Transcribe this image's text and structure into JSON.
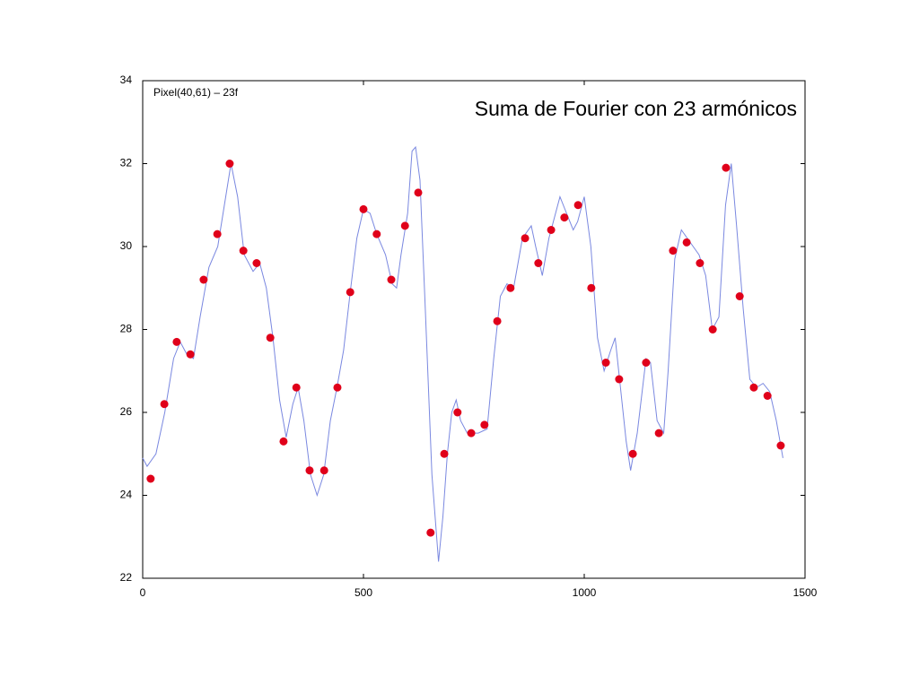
{
  "chart_data": {
    "type": "line",
    "title": "Suma de Fourier con 23 armónicos",
    "annotation": "Pixel(40,61) – 23f",
    "xlim": [
      0,
      1500
    ],
    "xticks": [
      0,
      500,
      1000,
      1500
    ],
    "ylim": [
      22,
      34
    ],
    "yticks": [
      22,
      24,
      26,
      28,
      30,
      32,
      34
    ],
    "series": [
      {
        "type": "line",
        "color": "#7a88e0",
        "x": [
          0,
          10,
          30,
          50,
          70,
          85,
          100,
          115,
          130,
          150,
          170,
          185,
          200,
          215,
          230,
          250,
          265,
          280,
          295,
          310,
          325,
          340,
          352,
          365,
          380,
          395,
          410,
          425,
          440,
          455,
          470,
          485,
          500,
          515,
          530,
          550,
          565,
          575,
          585,
          600,
          610,
          618,
          628,
          640,
          655,
          670,
          680,
          690,
          700,
          710,
          720,
          735,
          760,
          780,
          795,
          810,
          825,
          840,
          860,
          880,
          890,
          905,
          920,
          945,
          960,
          975,
          985,
          1000,
          1015,
          1030,
          1045,
          1060,
          1070,
          1080,
          1095,
          1105,
          1120,
          1140,
          1150,
          1165,
          1180,
          1190,
          1205,
          1220,
          1240,
          1260,
          1275,
          1290,
          1305,
          1320,
          1333,
          1345,
          1360,
          1375,
          1390,
          1405,
          1420,
          1435,
          1450
        ],
        "values": [
          24.9,
          24.7,
          25.0,
          26.0,
          27.3,
          27.7,
          27.4,
          27.3,
          28.3,
          29.5,
          30.0,
          31.0,
          32.0,
          31.2,
          29.8,
          29.4,
          29.6,
          29.0,
          27.8,
          26.3,
          25.4,
          26.2,
          26.6,
          25.8,
          24.5,
          24.0,
          24.5,
          25.8,
          26.6,
          27.5,
          28.9,
          30.2,
          30.9,
          30.8,
          30.3,
          29.8,
          29.1,
          29.0,
          29.8,
          30.8,
          32.3,
          32.4,
          31.6,
          28.5,
          24.5,
          22.4,
          23.5,
          25.0,
          26.0,
          26.3,
          25.8,
          25.5,
          25.5,
          25.6,
          27.3,
          28.8,
          29.1,
          29.0,
          30.2,
          30.5,
          30.0,
          29.3,
          30.2,
          31.2,
          30.8,
          30.4,
          30.6,
          31.2,
          30.0,
          27.8,
          27.0,
          27.5,
          27.8,
          26.8,
          25.3,
          24.6,
          25.5,
          27.3,
          27.2,
          25.8,
          25.5,
          27.0,
          29.7,
          30.4,
          30.1,
          29.8,
          29.3,
          28.0,
          28.3,
          31.0,
          32.0,
          30.5,
          28.5,
          26.8,
          26.6,
          26.7,
          26.5,
          25.8,
          24.9
        ]
      },
      {
        "type": "scatter",
        "color": "#e0001a",
        "x": [
          18,
          49,
          77,
          108,
          138,
          169,
          197,
          228,
          258,
          289,
          319,
          348,
          378,
          411,
          441,
          470,
          500,
          530,
          563,
          594,
          624,
          652,
          683,
          713,
          744,
          774,
          803,
          833,
          866,
          896,
          925,
          955,
          986,
          1016,
          1049,
          1079,
          1110,
          1140,
          1169,
          1201,
          1232,
          1262,
          1291,
          1321,
          1352,
          1384,
          1415,
          1445
        ],
        "values": [
          24.4,
          26.2,
          27.7,
          27.4,
          29.2,
          30.3,
          32.0,
          29.9,
          29.6,
          27.8,
          25.3,
          26.6,
          24.6,
          24.6,
          26.6,
          28.9,
          30.9,
          30.3,
          29.2,
          30.5,
          31.3,
          23.1,
          25.0,
          26.0,
          25.5,
          25.7,
          28.2,
          29.0,
          30.2,
          29.6,
          30.4,
          30.7,
          31.0,
          29.0,
          27.2,
          26.8,
          25.0,
          27.2,
          25.5,
          29.9,
          30.1,
          29.6,
          28.0,
          31.9,
          28.8,
          26.6,
          26.4,
          25.2
        ]
      }
    ]
  }
}
